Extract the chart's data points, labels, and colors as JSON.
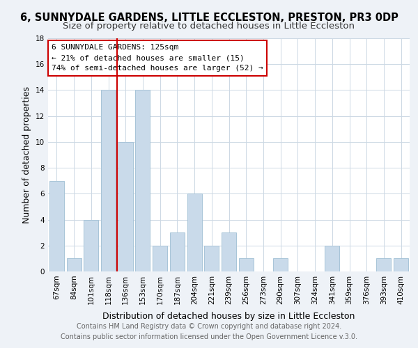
{
  "title": "6, SUNNYDALE GARDENS, LITTLE ECCLESTON, PRESTON, PR3 0DP",
  "subtitle": "Size of property relative to detached houses in Little Eccleston",
  "xlabel": "Distribution of detached houses by size in Little Eccleston",
  "ylabel": "Number of detached properties",
  "footer_line1": "Contains HM Land Registry data © Crown copyright and database right 2024.",
  "footer_line2": "Contains public sector information licensed under the Open Government Licence v.3.0.",
  "bar_labels": [
    "67sqm",
    "84sqm",
    "101sqm",
    "118sqm",
    "136sqm",
    "153sqm",
    "170sqm",
    "187sqm",
    "204sqm",
    "221sqm",
    "239sqm",
    "256sqm",
    "273sqm",
    "290sqm",
    "307sqm",
    "324sqm",
    "341sqm",
    "359sqm",
    "376sqm",
    "393sqm",
    "410sqm"
  ],
  "bar_values": [
    7,
    1,
    4,
    14,
    10,
    14,
    2,
    3,
    6,
    2,
    3,
    1,
    0,
    1,
    0,
    0,
    2,
    0,
    0,
    1,
    1
  ],
  "bar_color": "#c9daea",
  "bar_edge_color": "#a8c4d8",
  "vline_x": 3.5,
  "vline_color": "#cc0000",
  "annotation_title": "6 SUNNYDALE GARDENS: 125sqm",
  "annotation_line1": "← 21% of detached houses are smaller (15)",
  "annotation_line2": "74% of semi-detached houses are larger (52) →",
  "annotation_box_edge": "#cc0000",
  "ylim": [
    0,
    18
  ],
  "yticks": [
    0,
    2,
    4,
    6,
    8,
    10,
    12,
    14,
    16,
    18
  ],
  "background_color": "#eef2f7",
  "plot_bg_color": "#ffffff",
  "grid_color": "#ccd8e4",
  "title_fontsize": 10.5,
  "subtitle_fontsize": 9.5,
  "axis_label_fontsize": 9,
  "tick_fontsize": 7.5,
  "annotation_fontsize": 8,
  "footer_fontsize": 7
}
